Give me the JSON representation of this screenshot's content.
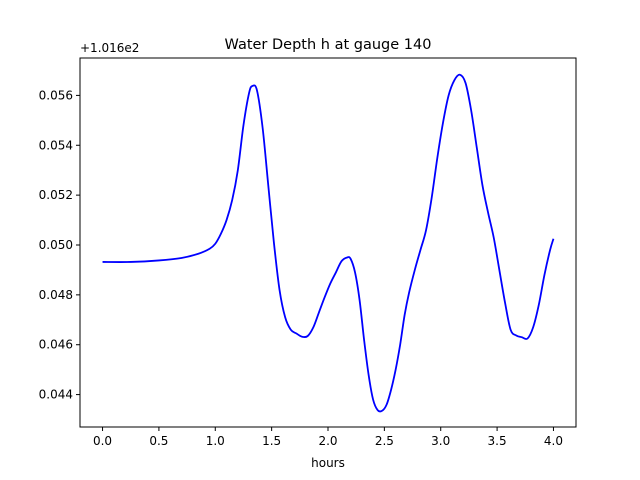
{
  "chart_data": {
    "type": "line",
    "title": "Water Depth h at gauge 140",
    "xlabel": "hours",
    "ylabel": "",
    "offset_label": "+1.016e2",
    "xlim": [
      -0.2,
      4.2
    ],
    "ylim": [
      0.0427,
      0.0575
    ],
    "xticks": [
      0.0,
      0.5,
      1.0,
      1.5,
      2.0,
      2.5,
      3.0,
      3.5,
      4.0
    ],
    "xtick_labels": [
      "0.0",
      "0.5",
      "1.0",
      "1.5",
      "2.0",
      "2.5",
      "3.0",
      "3.5",
      "4.0"
    ],
    "yticks": [
      0.044,
      0.046,
      0.048,
      0.05,
      0.052,
      0.054,
      0.056
    ],
    "ytick_labels": [
      "0.044",
      "0.046",
      "0.048",
      "0.050",
      "0.052",
      "0.054",
      "0.056"
    ],
    "grid": false,
    "series": [
      {
        "color": "#0000ff",
        "x": [
          0.0,
          0.25,
          0.5,
          0.7,
          0.85,
          0.95,
          1.0,
          1.05,
          1.1,
          1.15,
          1.2,
          1.25,
          1.3,
          1.33,
          1.37,
          1.42,
          1.47,
          1.52,
          1.57,
          1.62,
          1.67,
          1.72,
          1.77,
          1.82,
          1.87,
          1.92,
          1.97,
          2.02,
          2.07,
          2.12,
          2.17,
          2.2,
          2.24,
          2.28,
          2.32,
          2.36,
          2.4,
          2.44,
          2.48,
          2.52,
          2.56,
          2.6,
          2.64,
          2.68,
          2.72,
          2.77,
          2.82,
          2.87,
          2.92,
          2.97,
          3.02,
          3.07,
          3.12,
          3.17,
          3.22,
          3.27,
          3.32,
          3.37,
          3.42,
          3.47,
          3.52,
          3.57,
          3.62,
          3.67,
          3.72,
          3.77,
          3.82,
          3.87,
          3.92,
          3.97,
          4.0
        ],
        "y": [
          0.04932,
          0.04932,
          0.04938,
          0.04948,
          0.04965,
          0.04985,
          0.05005,
          0.05045,
          0.051,
          0.0518,
          0.053,
          0.0548,
          0.0561,
          0.05638,
          0.0562,
          0.0547,
          0.0524,
          0.0501,
          0.0482,
          0.0471,
          0.0466,
          0.04645,
          0.04632,
          0.04635,
          0.0467,
          0.0473,
          0.0479,
          0.04845,
          0.0489,
          0.04935,
          0.0495,
          0.04945,
          0.0489,
          0.0478,
          0.0462,
          0.0448,
          0.0438,
          0.04338,
          0.04335,
          0.0436,
          0.0442,
          0.045,
          0.046,
          0.0472,
          0.0481,
          0.049,
          0.0498,
          0.0506,
          0.0519,
          0.0535,
          0.0549,
          0.056,
          0.0566,
          0.05683,
          0.0565,
          0.0554,
          0.0539,
          0.0524,
          0.0513,
          0.0503,
          0.049,
          0.0477,
          0.0466,
          0.04637,
          0.0463,
          0.04625,
          0.0467,
          0.0476,
          0.0488,
          0.0498,
          0.05025
        ]
      }
    ]
  }
}
